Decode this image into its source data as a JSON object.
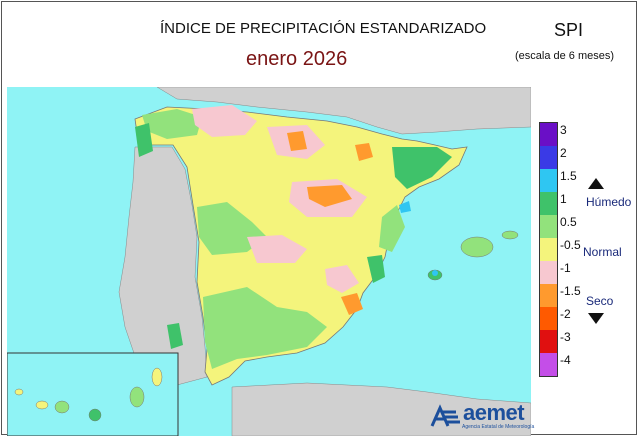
{
  "header": {
    "title": "ÍNDICE DE PRECIPITACIÓN ESTANDARIZADO",
    "subtitle": "enero  2026",
    "index_label": "SPI",
    "scale_note": "(escala de 6 meses)"
  },
  "legend": {
    "ticks": [
      "3",
      "2",
      "1.5",
      "1",
      "0.5",
      "-0.5",
      "-1",
      "-1.5",
      "-2",
      "-3",
      "-4"
    ],
    "colors": [
      "#6a0fc6",
      "#3a3ae6",
      "#2fc6f2",
      "#3fc26a",
      "#92e27c",
      "#f4f47c",
      "#f7c8d0",
      "#ff9a2e",
      "#ff5a00",
      "#e01010",
      "#c44ee8"
    ],
    "categories": {
      "wet": "Húmedo",
      "normal": "Normal",
      "dry": "Seco"
    }
  },
  "map_colors": {
    "sea": "#8ff3f5",
    "land_other": "#d0d0d0",
    "normal": "#f4f47c",
    "slightly_wet": "#92e27c",
    "wet": "#3fc26a",
    "very_wet": "#2fc6f2",
    "slightly_dry": "#f7c8d0",
    "dry": "#ff9a2e"
  },
  "logo": {
    "name": "aemet",
    "tagline": "Agencia Estatal de Meteorología"
  }
}
